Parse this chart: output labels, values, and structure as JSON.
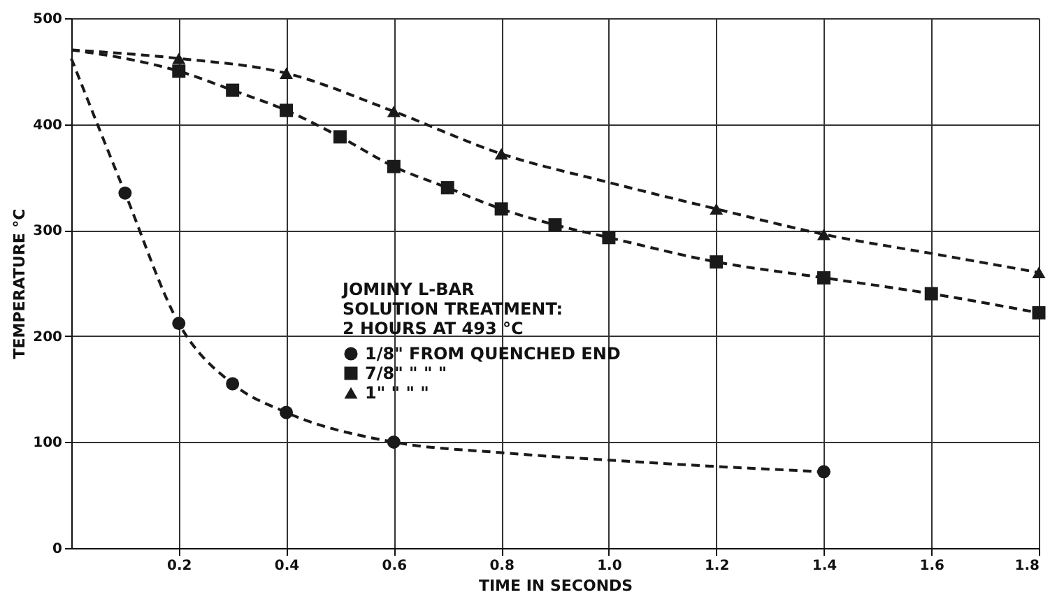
{
  "chart_data": {
    "type": "scatter",
    "xlabel": "TIME IN SECONDS",
    "ylabel": "TEMPERATURE °C",
    "legend_title": "JOMINY L-BAR\nSOLUTION TREATMENT:\n2 HOURS AT 493 °C",
    "xlim": [
      0,
      1.8
    ],
    "ylim": [
      0,
      500
    ],
    "xticks": [
      0.2,
      0.4,
      0.6,
      0.8,
      {
        "value": 1.0,
        "label": "1.0"
      },
      1.2,
      1.4,
      1.6,
      1.8
    ],
    "yticks": [
      0,
      100,
      200,
      300,
      400,
      500
    ],
    "grid": true,
    "legend": "center",
    "series": [
      {
        "name": "1/8\" FROM QUENCHED END",
        "marker": "circle",
        "color": "#1a1a1a",
        "x": [
          0.1,
          0.2,
          0.3,
          0.4,
          0.6,
          1.4
        ],
        "values": [
          335,
          212,
          155,
          128,
          100,
          72
        ]
      },
      {
        "name": "7/8\"  \"  \"  \"",
        "marker": "square",
        "color": "#1a1a1a",
        "x": [
          0.2,
          0.3,
          0.4,
          0.5,
          0.6,
          0.7,
          0.8,
          0.9,
          1.0,
          1.2,
          1.4,
          1.6,
          1.8
        ],
        "values": [
          450,
          432,
          413,
          388,
          360,
          340,
          320,
          305,
          293,
          270,
          255,
          240,
          222
        ]
      },
      {
        "name": "1\"  \"  \"  \"",
        "marker": "triangle",
        "color": "#1a1a1a",
        "x": [
          0.2,
          0.4,
          0.6,
          0.8,
          1.2,
          1.4,
          1.8
        ],
        "values": [
          462,
          448,
          412,
          372,
          320,
          296,
          260
        ]
      },
      {
        "type": "line",
        "line_style": "dashed",
        "marker": "none",
        "color": "#1a1a1a",
        "x": [
          0,
          0.1,
          0.2,
          0.3,
          0.4,
          0.6,
          0.8,
          1.0,
          1.2,
          1.4
        ],
        "values": [
          462,
          335,
          212,
          155,
          128,
          100,
          90,
          83,
          77,
          72
        ]
      },
      {
        "type": "line",
        "line_style": "dashed",
        "marker": "none",
        "color": "#1a1a1a",
        "x": [
          0,
          0.1,
          0.2,
          0.3,
          0.4,
          0.5,
          0.6,
          0.7,
          0.8,
          0.9,
          1.0,
          1.2,
          1.4,
          1.6,
          1.8
        ],
        "values": [
          470,
          462,
          450,
          432,
          413,
          388,
          360,
          340,
          320,
          305,
          293,
          270,
          255,
          240,
          222
        ]
      },
      {
        "type": "line",
        "line_style": "dashed",
        "marker": "none",
        "color": "#1a1a1a",
        "x": [
          0,
          0.2,
          0.4,
          0.6,
          0.8,
          1.0,
          1.2,
          1.4,
          1.6,
          1.8
        ],
        "values": [
          470,
          462,
          448,
          412,
          372,
          345,
          320,
          296,
          278,
          260
        ]
      }
    ]
  }
}
